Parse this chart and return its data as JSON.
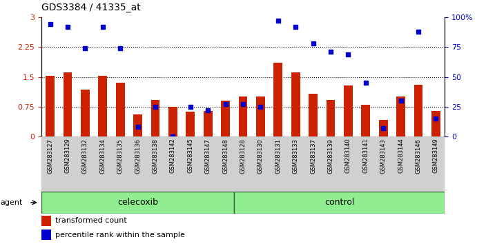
{
  "title": "GDS3384 / 41335_at",
  "samples": [
    "GSM283127",
    "GSM283129",
    "GSM283132",
    "GSM283134",
    "GSM283135",
    "GSM283136",
    "GSM283138",
    "GSM283142",
    "GSM283145",
    "GSM283147",
    "GSM283148",
    "GSM283128",
    "GSM283130",
    "GSM283131",
    "GSM283133",
    "GSM283137",
    "GSM283139",
    "GSM283140",
    "GSM283141",
    "GSM283143",
    "GSM283144",
    "GSM283146",
    "GSM283149"
  ],
  "transformed_count": [
    1.52,
    1.62,
    1.18,
    1.52,
    1.35,
    0.55,
    0.92,
    0.75,
    0.62,
    0.65,
    0.9,
    1.0,
    1.0,
    1.85,
    1.62,
    1.08,
    0.92,
    1.28,
    0.8,
    0.42,
    1.0,
    1.3,
    0.65
  ],
  "percentile_rank": [
    94,
    92,
    74,
    92,
    74,
    8,
    25,
    0,
    25,
    22,
    27,
    27,
    25,
    97,
    92,
    78,
    71,
    69,
    45,
    7,
    30,
    88,
    15
  ],
  "celecoxib_count": 11,
  "control_count": 12,
  "group_labels": [
    "celecoxib",
    "control"
  ],
  "bar_color": "#cc2200",
  "dot_color": "#0000cc",
  "group_color": "#90ee90",
  "group_border_color": "#336633",
  "yticks_left": [
    0,
    0.75,
    1.5,
    2.25,
    3
  ],
  "yticks_right": [
    0,
    25,
    50,
    75,
    100
  ],
  "ylim_left": [
    0,
    3
  ],
  "ylim_right": [
    0,
    100
  ],
  "agent_label": "agent",
  "legend_red": "transformed count",
  "legend_blue": "percentile rank within the sample",
  "tick_bg_color": "#d0d0d0",
  "bar_width": 0.5
}
